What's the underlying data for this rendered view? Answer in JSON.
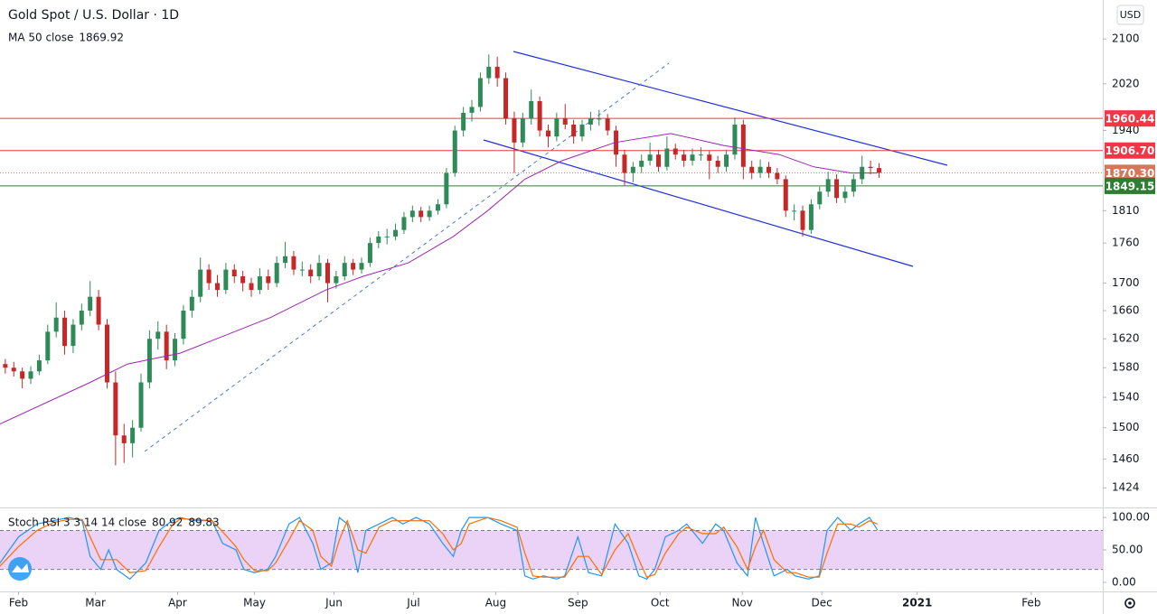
{
  "chart_data": [
    {
      "type": "candlestick",
      "title": "Gold Spot / U.S. Dollar · 1D",
      "currency": "USD",
      "log_scale": true,
      "up_color": "#2e8b57",
      "down_color": "#c62828",
      "xlim": [
        0,
        416
      ],
      "xticks": [
        {
          "value": 7,
          "label": "Feb"
        },
        {
          "value": 36,
          "label": "Mar"
        },
        {
          "value": 67,
          "label": "Apr"
        },
        {
          "value": 96,
          "label": "May"
        },
        {
          "value": 126,
          "label": "Jun"
        },
        {
          "value": 156,
          "label": "Jul"
        },
        {
          "value": 187,
          "label": "Aug"
        },
        {
          "value": 218,
          "label": "Sep"
        },
        {
          "value": 249,
          "label": "Oct"
        },
        {
          "value": 280,
          "label": "Nov"
        },
        {
          "value": 310,
          "label": "Dec"
        },
        {
          "value": 346,
          "label": "2021"
        },
        {
          "value": 389,
          "label": "Feb"
        }
      ],
      "ylim": [
        1400,
        2172
      ],
      "yticks": [
        1424,
        1460,
        1500,
        1540,
        1580,
        1620,
        1660,
        1700,
        1760,
        1810,
        1940,
        2020,
        2100
      ],
      "x": [
        2,
        5.2,
        8.4,
        11.6,
        14.8,
        18,
        21.2,
        24.4,
        27.6,
        30.8,
        34,
        37.2,
        40.4,
        43.6,
        46.8,
        50,
        53.2,
        56.4,
        59.6,
        62.8,
        66,
        69.2,
        72.4,
        75.6,
        78.8,
        82,
        85.2,
        88.4,
        91.6,
        94.8,
        98,
        101.2,
        104.4,
        107.6,
        110.8,
        114,
        117.2,
        120.4,
        123.6,
        126.8,
        130,
        133.2,
        136.4,
        139.6,
        142.8,
        146,
        149.2,
        152.4,
        155.6,
        158.8,
        162,
        165.2,
        168.4,
        171.6,
        174.8,
        178,
        181.2,
        184.4,
        187.6,
        190.8,
        194,
        197.2,
        200.4,
        203.6,
        206.8,
        210,
        213.2,
        216.4,
        219.6,
        222.8,
        226,
        229.2,
        232.4,
        235.6,
        238.8,
        242,
        245.2,
        248.4,
        251.6,
        254.8,
        258,
        261.2,
        264.4,
        267.6,
        270.8,
        274,
        277.2,
        280.4,
        283.6,
        286.8,
        290,
        293.2,
        296.4,
        299.6,
        302.8,
        306,
        309.2,
        312.4,
        315.6,
        318.8,
        322,
        325.2,
        328.4,
        331.6
      ],
      "open": [
        1585,
        1580,
        1575,
        1565,
        1575,
        1590,
        1630,
        1650,
        1610,
        1640,
        1660,
        1680,
        1640,
        1560,
        1490,
        1480,
        1500,
        1560,
        1620,
        1630,
        1590,
        1620,
        1660,
        1680,
        1720,
        1700,
        1690,
        1720,
        1710,
        1700,
        1690,
        1710,
        1700,
        1730,
        1740,
        1720,
        1720,
        1710,
        1730,
        1700,
        1710,
        1730,
        1720,
        1730,
        1760,
        1770,
        1770,
        1780,
        1800,
        1810,
        1800,
        1810,
        1820,
        1870,
        1940,
        1970,
        1980,
        2030,
        2050,
        2030,
        1960,
        1920,
        1960,
        1990,
        1940,
        1930,
        1960,
        1950,
        1930,
        1950,
        1960,
        1960,
        1940,
        1900,
        1870,
        1880,
        1890,
        1900,
        1880,
        1910,
        1900,
        1890,
        1900,
        1900,
        1890,
        1880,
        1900,
        1950,
        1880,
        1870,
        1880,
        1870,
        1860,
        1810,
        1810,
        1780,
        1820,
        1840,
        1860,
        1830,
        1840,
        1860,
        1880,
        1878
      ],
      "high": [
        1592,
        1588,
        1580,
        1582,
        1598,
        1640,
        1672,
        1660,
        1648,
        1670,
        1703,
        1690,
        1648,
        1575,
        1505,
        1510,
        1572,
        1632,
        1645,
        1640,
        1628,
        1668,
        1690,
        1738,
        1728,
        1712,
        1730,
        1728,
        1718,
        1708,
        1722,
        1720,
        1740,
        1762,
        1748,
        1732,
        1728,
        1742,
        1736,
        1718,
        1740,
        1736,
        1738,
        1768,
        1778,
        1782,
        1790,
        1808,
        1818,
        1816,
        1818,
        1828,
        1878,
        1948,
        1980,
        1992,
        2040,
        2072,
        2068,
        2040,
        1972,
        1970,
        2010,
        1998,
        1950,
        1970,
        1985,
        1958,
        1958,
        1972,
        1975,
        1968,
        1948,
        1908,
        1888,
        1900,
        1920,
        1908,
        1930,
        1918,
        1908,
        1910,
        1912,
        1906,
        1898,
        1908,
        1962,
        1958,
        1890,
        1892,
        1888,
        1878,
        1866,
        1820,
        1818,
        1828,
        1848,
        1872,
        1868,
        1848,
        1868,
        1898,
        1890,
        1886
      ],
      "low": [
        1572,
        1568,
        1552,
        1558,
        1570,
        1585,
        1622,
        1598,
        1600,
        1632,
        1652,
        1632,
        1552,
        1452,
        1455,
        1462,
        1495,
        1552,
        1605,
        1578,
        1582,
        1612,
        1650,
        1672,
        1690,
        1680,
        1684,
        1700,
        1688,
        1680,
        1684,
        1690,
        1694,
        1722,
        1712,
        1710,
        1700,
        1704,
        1672,
        1692,
        1704,
        1712,
        1714,
        1724,
        1752,
        1758,
        1764,
        1774,
        1792,
        1792,
        1794,
        1804,
        1814,
        1864,
        1930,
        1955,
        1972,
        2020,
        2015,
        1950,
        1870,
        1912,
        1950,
        1930,
        1912,
        1922,
        1942,
        1918,
        1922,
        1940,
        1948,
        1932,
        1880,
        1850,
        1855,
        1870,
        1882,
        1872,
        1874,
        1892,
        1880,
        1882,
        1890,
        1860,
        1870,
        1872,
        1892,
        1860,
        1860,
        1862,
        1862,
        1852,
        1800,
        1795,
        1770,
        1774,
        1812,
        1832,
        1822,
        1822,
        1832,
        1852,
        1868,
        1862
      ],
      "close": [
        1580,
        1575,
        1565,
        1575,
        1590,
        1630,
        1650,
        1610,
        1640,
        1660,
        1680,
        1640,
        1560,
        1490,
        1480,
        1500,
        1560,
        1620,
        1630,
        1590,
        1620,
        1660,
        1680,
        1720,
        1700,
        1690,
        1720,
        1710,
        1700,
        1690,
        1710,
        1700,
        1730,
        1740,
        1720,
        1720,
        1710,
        1730,
        1700,
        1710,
        1730,
        1720,
        1730,
        1760,
        1770,
        1770,
        1780,
        1800,
        1810,
        1800,
        1810,
        1820,
        1870,
        1940,
        1970,
        1980,
        2030,
        2050,
        2030,
        1960,
        1920,
        1960,
        1990,
        1940,
        1930,
        1960,
        1950,
        1930,
        1950,
        1960,
        1960,
        1940,
        1900,
        1870,
        1880,
        1890,
        1900,
        1880,
        1910,
        1900,
        1890,
        1900,
        1900,
        1890,
        1880,
        1900,
        1950,
        1880,
        1870,
        1880,
        1870,
        1860,
        1810,
        1810,
        1780,
        1820,
        1840,
        1860,
        1830,
        1840,
        1860,
        1880,
        1878,
        1870.3
      ],
      "series": [
        {
          "name": "MA 50 close",
          "color": "#9c27b0",
          "x": [
            0,
            34,
            48,
            68,
            102,
            123,
            137,
            154,
            171,
            184,
            198,
            212,
            232,
            253,
            273,
            294,
            307,
            321,
            331
          ],
          "values": [
            1505,
            1560,
            1585,
            1600,
            1650,
            1690,
            1710,
            1730,
            1770,
            1810,
            1860,
            1890,
            1920,
            1935,
            1915,
            1900,
            1880,
            1870,
            1869.92
          ]
        }
      ],
      "price_lines": [
        {
          "value": 1960.44,
          "color": "#f23645",
          "style": "solid"
        },
        {
          "value": 1906.7,
          "label": "1906.70",
          "color": "#f23645",
          "style": "solid"
        },
        {
          "value": 1870.3,
          "label": "1870.30",
          "color": "#d8765c",
          "style": "dotted"
        },
        {
          "value": 1849.15,
          "color": "#2e7d32",
          "style": "solid"
        }
      ]
    },
    {
      "type": "line",
      "title": "Stoch RSI 3 3 14 14 close",
      "ylim": [
        -14,
        114
      ],
      "yticks": [
        {
          "value": 0,
          "label": "0.00"
        },
        {
          "value": 50,
          "label": "50.00"
        },
        {
          "value": 100,
          "label": "100.00"
        }
      ],
      "bands": [
        20,
        80
      ],
      "band_color": "#e6c8f5",
      "series": [
        {
          "name": "K",
          "color": "#2196f3",
          "x": [
            0,
            7,
            14,
            20,
            26,
            31,
            34,
            38,
            41,
            44,
            49,
            55,
            60,
            65,
            68,
            73,
            80,
            84,
            89,
            92,
            96,
            101,
            104,
            109,
            113,
            118,
            121,
            125,
            128,
            131,
            135,
            138,
            143,
            148,
            152,
            157,
            162,
            167,
            171,
            174,
            177,
            184,
            189,
            195,
            198,
            201,
            205,
            210,
            213,
            218,
            222,
            227,
            232,
            237,
            241,
            244,
            247,
            251,
            256,
            259,
            265,
            270,
            273,
            278,
            282,
            285,
            288,
            292,
            297,
            300,
            305,
            309,
            312,
            316,
            321,
            324,
            328,
            331
          ],
          "values": [
            30,
            70,
            90,
            95,
            100,
            95,
            40,
            20,
            50,
            20,
            5,
            30,
            80,
            95,
            100,
            95,
            95,
            60,
            50,
            20,
            15,
            20,
            40,
            90,
            100,
            60,
            20,
            30,
            100,
            90,
            15,
            80,
            90,
            100,
            90,
            100,
            90,
            60,
            40,
            80,
            100,
            100,
            90,
            80,
            10,
            5,
            10,
            5,
            10,
            70,
            15,
            10,
            90,
            60,
            10,
            5,
            20,
            70,
            80,
            90,
            60,
            90,
            80,
            30,
            10,
            100,
            60,
            10,
            20,
            10,
            5,
            10,
            80,
            100,
            80,
            90,
            100,
            80.92
          ]
        },
        {
          "name": "D",
          "color": "#ff6d00",
          "x": [
            0,
            7,
            14,
            20,
            26,
            31,
            34,
            38,
            41,
            44,
            49,
            55,
            60,
            65,
            68,
            73,
            80,
            84,
            89,
            92,
            96,
            101,
            104,
            109,
            113,
            118,
            121,
            125,
            128,
            131,
            135,
            138,
            143,
            148,
            152,
            157,
            162,
            167,
            171,
            174,
            177,
            184,
            189,
            195,
            198,
            201,
            205,
            210,
            213,
            218,
            222,
            227,
            232,
            237,
            241,
            244,
            247,
            251,
            256,
            259,
            265,
            270,
            273,
            278,
            282,
            285,
            288,
            292,
            297,
            300,
            305,
            309,
            312,
            316,
            321,
            324,
            328,
            331
          ],
          "values": [
            25,
            55,
            80,
            92,
            97,
            97,
            70,
            35,
            35,
            35,
            15,
            18,
            55,
            88,
            98,
            97,
            95,
            78,
            55,
            35,
            18,
            18,
            30,
            65,
            95,
            80,
            40,
            25,
            65,
            95,
            50,
            45,
            85,
            95,
            95,
            95,
            95,
            75,
            50,
            60,
            90,
            100,
            95,
            85,
            45,
            10,
            8,
            8,
            8,
            40,
            40,
            12,
            50,
            75,
            35,
            8,
            12,
            45,
            75,
            85,
            75,
            75,
            85,
            55,
            20,
            55,
            80,
            35,
            15,
            15,
            8,
            8,
            45,
            90,
            90,
            85,
            95,
            89.83
          ]
        }
      ]
    }
  ]
}
